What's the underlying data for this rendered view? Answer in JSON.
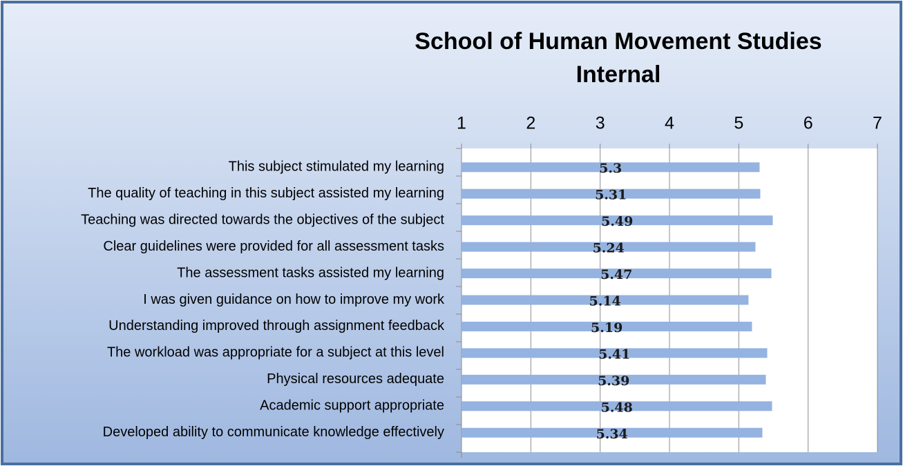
{
  "chart_data": {
    "type": "barh",
    "title": [
      "School of Human Movement Studies",
      "Internal"
    ],
    "categories": [
      "This subject stimulated my learning",
      "The quality of teaching in this subject assisted my learning",
      "Teaching was directed towards the objectives of the subject",
      "Clear guidelines were provided for all assessment tasks",
      "The assessment tasks assisted my learning",
      "I was given guidance on how to improve my work",
      "Understanding improved through assignment feedback",
      "The workload was appropriate for a subject at this level",
      "Physical resources adequate",
      "Academic support appropriate",
      "Developed ability to communicate knowledge effectively"
    ],
    "values": [
      5.3,
      5.31,
      5.49,
      5.24,
      5.47,
      5.14,
      5.19,
      5.41,
      5.39,
      5.48,
      5.34
    ],
    "color": "#95b3e0",
    "xlim": [
      1,
      7
    ],
    "xticks": [
      1,
      2,
      3,
      4,
      5,
      6,
      7
    ],
    "grid": true
  }
}
